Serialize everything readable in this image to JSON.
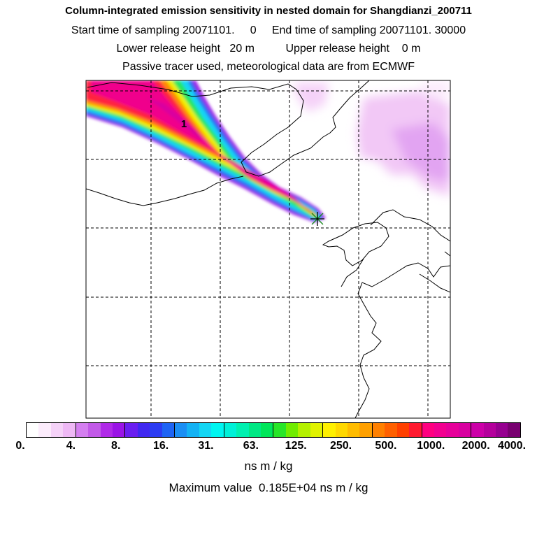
{
  "header": {
    "title": "Column-integrated emission sensitivity in nested domain for Shangdianzi_200711",
    "sampling": "Start time of sampling 20071101.     0     End time of sampling 20071101. 30000",
    "release": "Lower release height   20 m          Upper release height    0 m",
    "tracer": "Passive tracer used, meteorological data are from ECMWF"
  },
  "map": {
    "contour_label": "1",
    "receptor_marker": "Shangdianzi receptor"
  },
  "colorbar": {
    "ticks": [
      "0.",
      "4.",
      "8.",
      "16.",
      "31.",
      "63.",
      "125.",
      "250.",
      "500.",
      "1000.",
      "2000.",
      "4000."
    ],
    "colors": [
      "#ffffff",
      "#fcecfc",
      "#f5d2f8",
      "#eeb8f5",
      "#d47ff0",
      "#c25ae8",
      "#b02ae8",
      "#9a14e6",
      "#6a1ef0",
      "#4028f0",
      "#2c3cf2",
      "#1e64f4",
      "#1a8ef4",
      "#14b2f4",
      "#14d6f4",
      "#00f5f0",
      "#00f0d8",
      "#00f0b0",
      "#00e884",
      "#00e65a",
      "#28e628",
      "#70ec00",
      "#b4f000",
      "#e0f200",
      "#fff000",
      "#ffd800",
      "#ffbc00",
      "#ffa000",
      "#ff8000",
      "#ff6000",
      "#ff4000",
      "#ff1a30",
      "#ff0080",
      "#f20090",
      "#e6009a",
      "#d800a0",
      "#cc00a8",
      "#b4009c",
      "#960090",
      "#780070"
    ],
    "units": "ns m / kg"
  },
  "footer": {
    "max_value": "Maximum value  0.185E+04 ns m / kg"
  }
}
